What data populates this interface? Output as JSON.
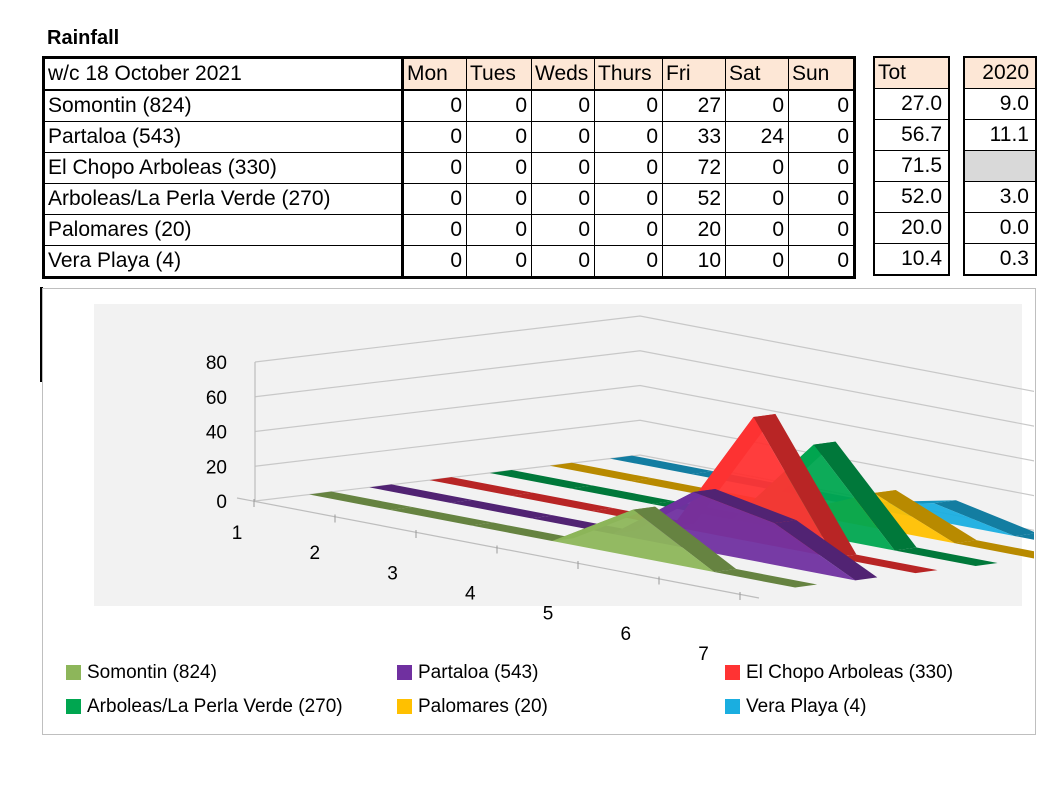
{
  "title": "Rainfall",
  "table": {
    "week_label": "w/c 18 October 2021",
    "days": [
      "Mon",
      "Tues",
      "Weds",
      "Thurs",
      "Fri",
      "Sat",
      "Sun"
    ],
    "tot_header": "Tot",
    "prev_header": "2020",
    "rows": [
      {
        "name": "Somontin (824)",
        "values": [
          "0",
          "0",
          "0",
          "0",
          "27",
          "0",
          "0"
        ],
        "tot": "27.0",
        "prev": "9.0"
      },
      {
        "name": "Partaloa (543)",
        "values": [
          "0",
          "0",
          "0",
          "0",
          "33",
          "24",
          "0"
        ],
        "tot": "56.7",
        "prev": "11.1"
      },
      {
        "name": "El Chopo Arboleas (330)",
        "values": [
          "0",
          "0",
          "0",
          "0",
          "72",
          "0",
          "0"
        ],
        "tot": "71.5",
        "prev": ""
      },
      {
        "name": "Arboleas/La Perla Verde (270)",
        "values": [
          "0",
          "0",
          "0",
          "0",
          "52",
          "0",
          "0"
        ],
        "tot": "52.0",
        "prev": "3.0"
      },
      {
        "name": "Palomares (20)",
        "values": [
          "0",
          "0",
          "0",
          "0",
          "20",
          "0",
          "0"
        ],
        "tot": "20.0",
        "prev": "0.0"
      },
      {
        "name": "Vera Playa (4)",
        "values": [
          "0",
          "0",
          "0",
          "0",
          "10",
          "0",
          "0"
        ],
        "tot": "10.4",
        "prev": "0.3"
      }
    ]
  },
  "chart_data": {
    "type": "area",
    "title": "",
    "x": [
      1,
      2,
      3,
      4,
      5,
      6,
      7
    ],
    "ylim": [
      0,
      80
    ],
    "y_ticks": [
      0,
      20,
      40,
      60,
      80
    ],
    "grid": true,
    "legend_position": "bottom",
    "series": [
      {
        "name": "Somontin (824)",
        "color": "#8db65a",
        "values": [
          0,
          0,
          0,
          0,
          27,
          0,
          0
        ]
      },
      {
        "name": "Partaloa (543)",
        "color": "#7030a0",
        "values": [
          0,
          0,
          0,
          0,
          33,
          24,
          0
        ]
      },
      {
        "name": "El Chopo Arboleas (330)",
        "color": "#ff3333",
        "values": [
          0,
          0,
          0,
          0,
          72,
          0,
          0
        ]
      },
      {
        "name": "Arboleas/La Perla Verde (270)",
        "color": "#00a650",
        "values": [
          0,
          0,
          0,
          0,
          52,
          0,
          0
        ]
      },
      {
        "name": "Palomares (20)",
        "color": "#ffc000",
        "values": [
          0,
          0,
          0,
          0,
          20,
          0,
          0
        ]
      },
      {
        "name": "Vera Playa (4)",
        "color": "#1aaee0",
        "values": [
          0,
          0,
          0,
          0,
          10,
          0,
          0
        ]
      }
    ]
  }
}
